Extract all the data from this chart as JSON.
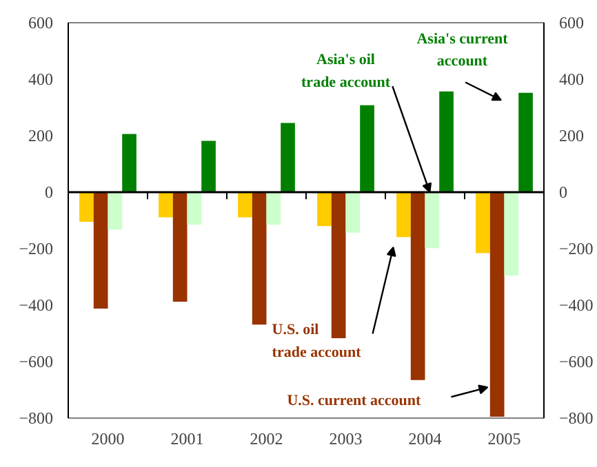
{
  "chart_data": {
    "type": "bar",
    "categories": [
      "2000",
      "2001",
      "2002",
      "2003",
      "2004",
      "2005"
    ],
    "series": [
      {
        "color": "#ffcc00",
        "values": [
          -105,
          -89,
          -89,
          -120,
          -159,
          -216
        ]
      },
      {
        "color": "#993300",
        "values": [
          -412,
          -388,
          -469,
          -517,
          -665,
          -795
        ]
      },
      {
        "color": "#ccffcc",
        "values": [
          -133,
          -115,
          -115,
          -143,
          -198,
          -295
        ]
      },
      {
        "color": "#008000",
        "values": [
          206,
          182,
          245,
          308,
          357,
          352
        ]
      }
    ],
    "ylim": [
      -800,
      600
    ],
    "yticks": [
      -800,
      -600,
      -400,
      -200,
      0,
      200,
      400,
      600
    ],
    "y2lim": [
      -800,
      600
    ],
    "y2ticks": [
      -800,
      -600,
      -400,
      -200,
      0,
      200,
      400,
      600
    ],
    "annotations": [
      {
        "text": "Asia's oil\ntrade account",
        "x": "2004",
        "y": 0
      },
      "Asia's current\naccount",
      "U.S. oil\ntrade account",
      "U.S. current account"
    ]
  }
}
